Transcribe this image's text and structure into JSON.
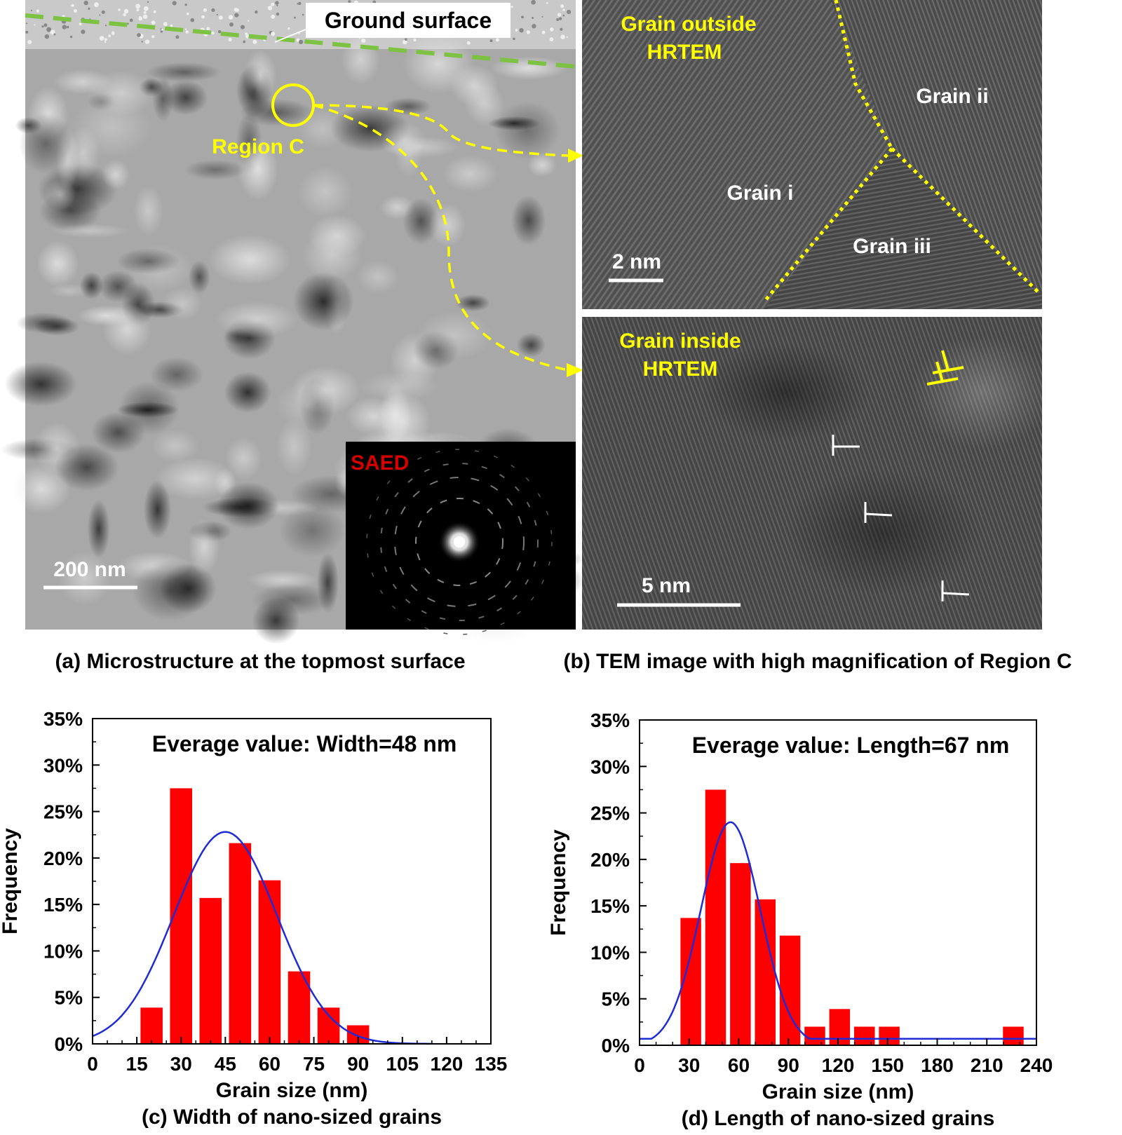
{
  "panel_a": {
    "ground_surface_label": "Ground surface",
    "region_label": "Region C",
    "scale_bar": "200 nm",
    "inset_label": "SAED",
    "caption": "(a) Microstructure at the topmost surface"
  },
  "panel_b": {
    "top_title_line1": "Grain outside",
    "top_title_line2": "HRTEM",
    "grain_i": "Grain i",
    "grain_ii": "Grain ii",
    "grain_iii": "Grain iii",
    "top_scale": "2 nm",
    "bottom_title_line1": "Grain inside",
    "bottom_title_line2": "HRTEM",
    "bottom_scale": "5 nm",
    "caption": "(b) TEM image with high magnification of Region C"
  },
  "chart_data": [
    {
      "type": "bar",
      "annotation": "Everage value: Width=48 nm",
      "xlabel": "Grain size (nm)",
      "ylabel": "Frequency",
      "caption": "(c) Width of nano-sized grains",
      "xlim": [
        0,
        135
      ],
      "ylim": [
        0,
        35
      ],
      "xticks": [
        "0",
        "15",
        "30",
        "45",
        "60",
        "75",
        "90",
        "105",
        "120",
        "135"
      ],
      "yticks": [
        "0%",
        "5%",
        "10%",
        "15%",
        "20%",
        "25%",
        "30%",
        "35%"
      ],
      "bar_width": 7.5,
      "bars": [
        {
          "x": 20,
          "value": 3.9
        },
        {
          "x": 30,
          "value": 27.5
        },
        {
          "x": 40,
          "value": 15.7
        },
        {
          "x": 50,
          "value": 21.6
        },
        {
          "x": 60,
          "value": 17.6
        },
        {
          "x": 70,
          "value": 7.8
        },
        {
          "x": 80,
          "value": 3.9
        },
        {
          "x": 90,
          "value": 2.0
        }
      ],
      "fit_curve": {
        "mean": 45,
        "sd": 17.5,
        "peak": 22.8
      }
    },
    {
      "type": "bar",
      "annotation": "Everage value: Length=67 nm",
      "xlabel": "Grain size (nm)",
      "ylabel": "Frequency",
      "caption": "(d) Length of nano-sized grains",
      "xlim": [
        0,
        240
      ],
      "ylim": [
        0,
        35
      ],
      "xticks": [
        "0",
        "30",
        "60",
        "90",
        "120",
        "150",
        "180",
        "210",
        "240"
      ],
      "yticks": [
        "0%",
        "5%",
        "10%",
        "15%",
        "20%",
        "25%",
        "30%",
        "35%"
      ],
      "bar_width": 12.5,
      "bars": [
        {
          "x": 31,
          "value": 13.7
        },
        {
          "x": 46,
          "value": 27.5
        },
        {
          "x": 61,
          "value": 19.6
        },
        {
          "x": 76,
          "value": 15.7
        },
        {
          "x": 91,
          "value": 11.8
        },
        {
          "x": 106,
          "value": 2.0
        },
        {
          "x": 121,
          "value": 3.9
        },
        {
          "x": 136,
          "value": 2.0
        },
        {
          "x": 151,
          "value": 2.0
        },
        {
          "x": 226,
          "value": 2.0
        }
      ],
      "fit_curve": {
        "mean": 55,
        "sd": 18,
        "peak": 24.0,
        "baseline": 0.7
      }
    }
  ]
}
